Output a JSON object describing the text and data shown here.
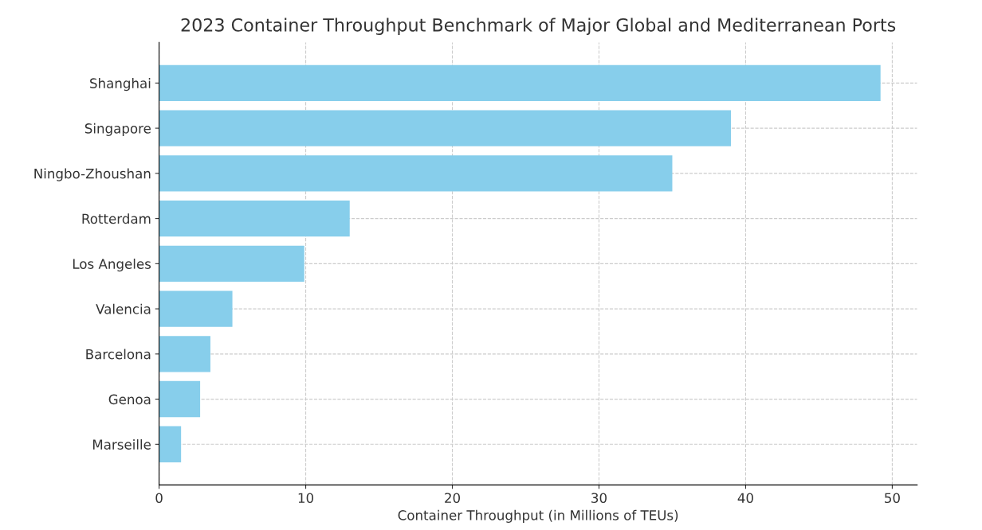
{
  "chart_data": {
    "type": "bar",
    "orientation": "horizontal",
    "title": "2023 Container Throughput Benchmark of Major Global and Mediterranean Ports",
    "xlabel": "Container Throughput (in Millions of TEUs)",
    "categories": [
      "Shanghai",
      "Singapore",
      "Ningbo-Zhoushan",
      "Rotterdam",
      "Los Angeles",
      "Valencia",
      "Barcelona",
      "Genoa",
      "Marseille"
    ],
    "values": [
      49.2,
      39.0,
      35.0,
      13.0,
      9.9,
      5.0,
      3.5,
      2.8,
      1.5
    ],
    "color": "#87ceeb",
    "xlim": [
      0,
      51.7
    ],
    "xticks": [
      0,
      10,
      20,
      30,
      40,
      50
    ],
    "grid": true,
    "line_style": "dashed"
  }
}
